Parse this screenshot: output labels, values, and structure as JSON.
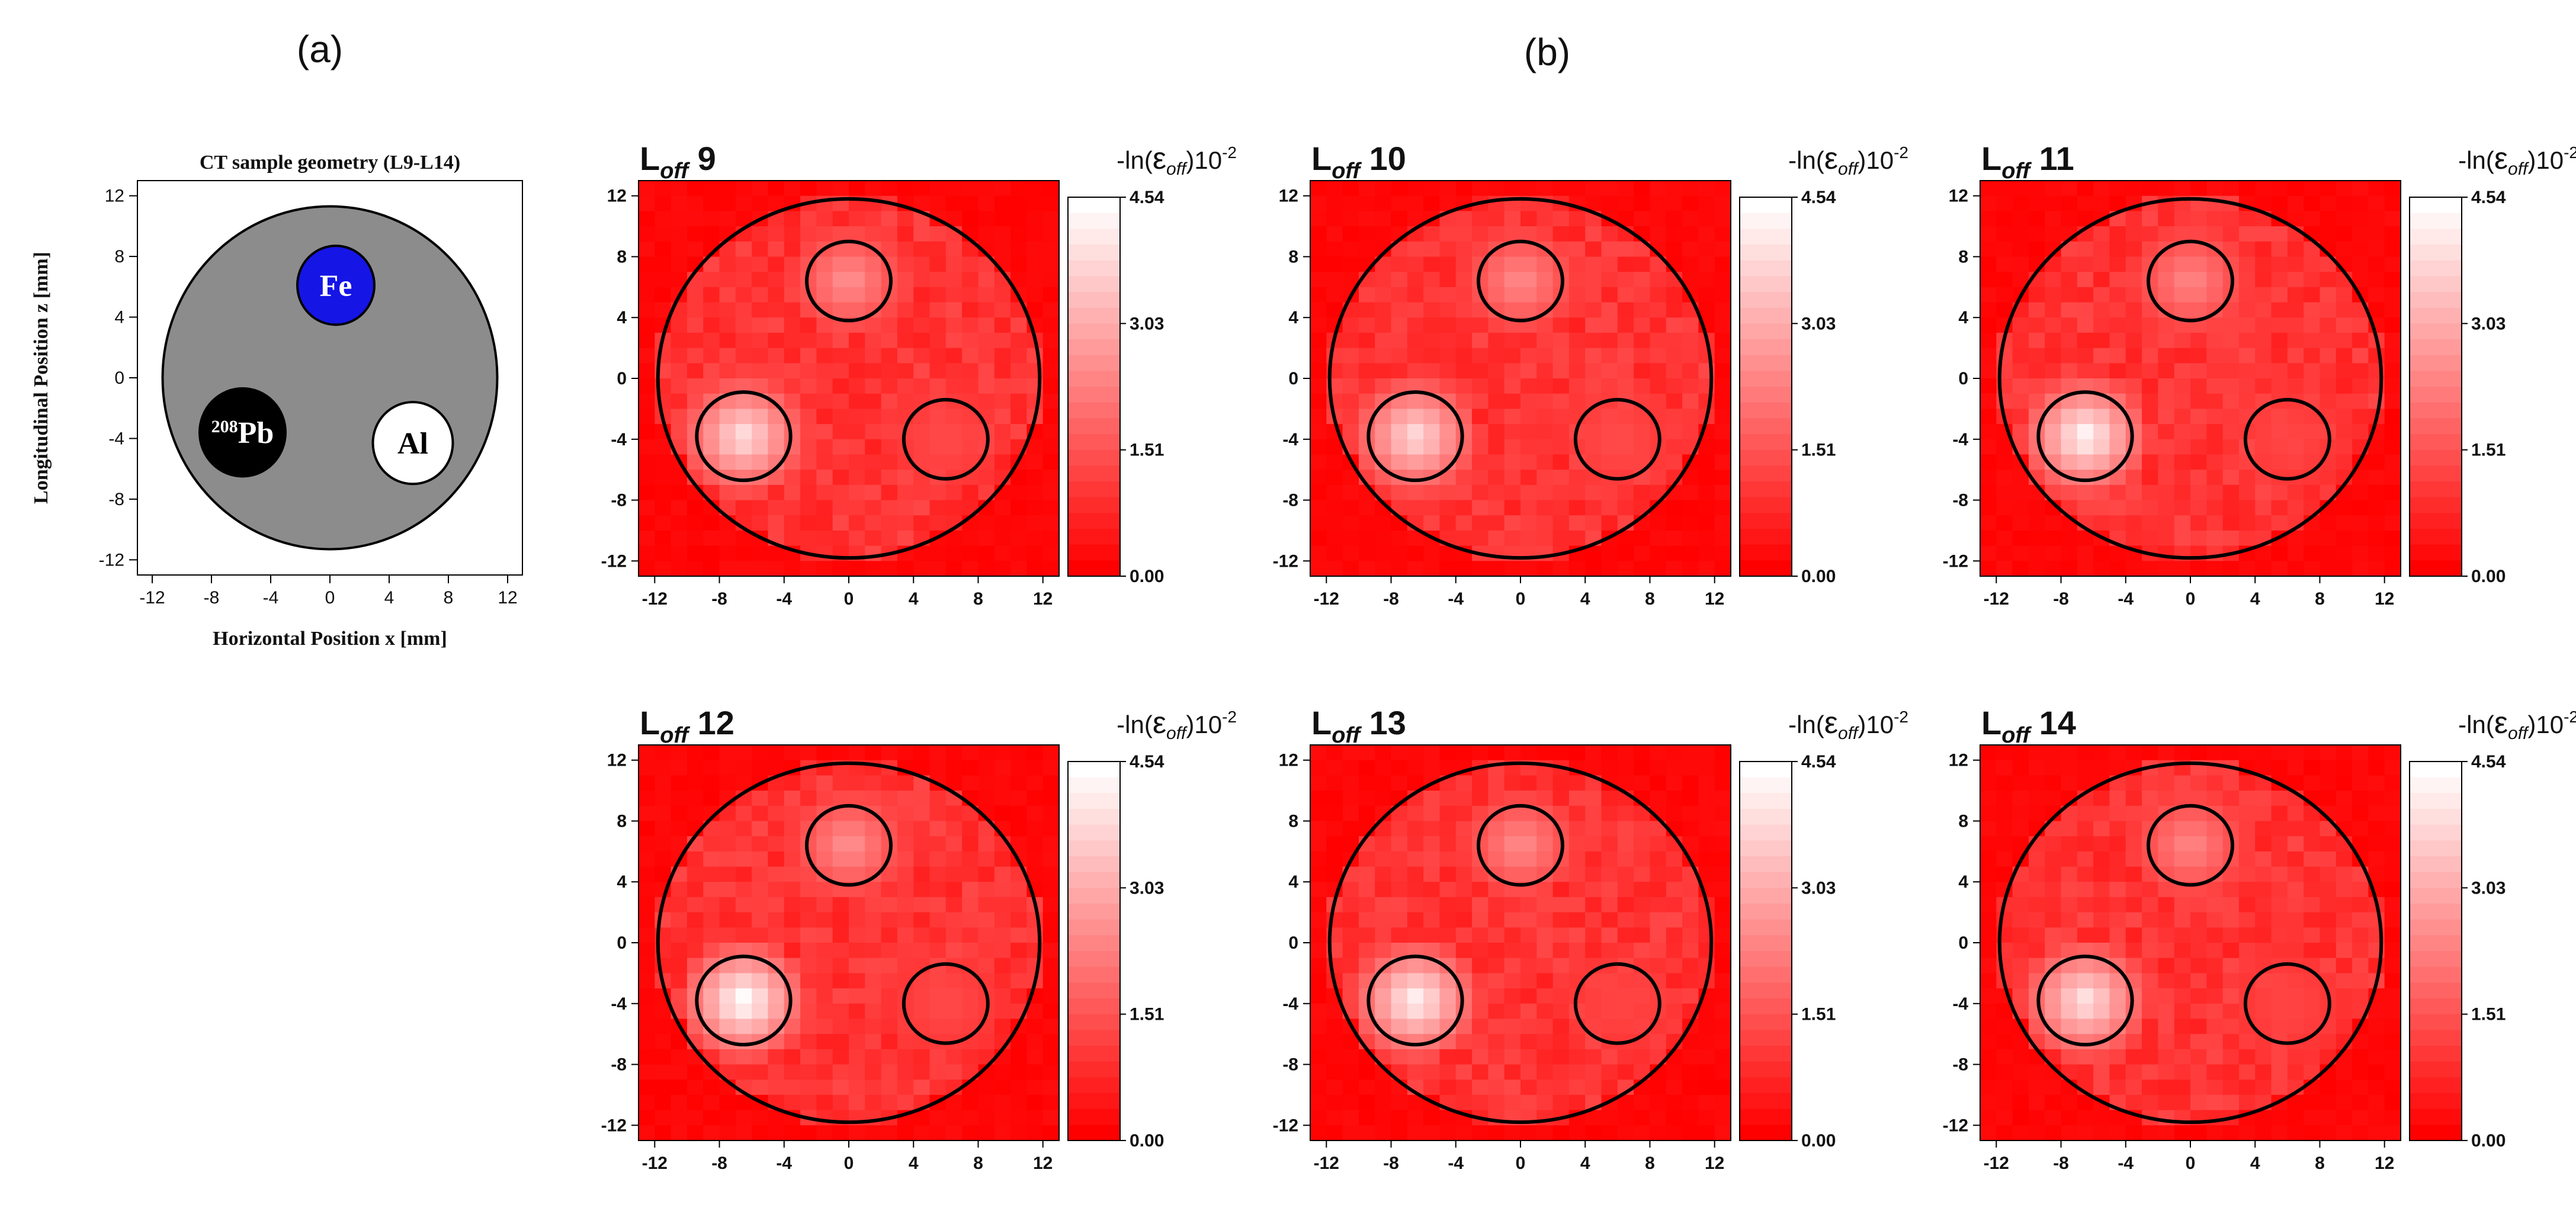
{
  "labels": {
    "panel_a": "(a)",
    "panel_b": "(b)"
  },
  "colors": {
    "sample_gray": "#8c8c8c",
    "fe": "#1515e6",
    "pb": "#000000",
    "al": "#ffffff",
    "map_red": "#ff0000"
  },
  "geometry_panel": {
    "title": "CT sample geometry (L9-L14)",
    "xlabel": "Horizontal Position x [mm]",
    "ylabel": "Longitudinal Position z [mm]",
    "xticks": [
      "-12",
      "-8",
      "-4",
      "0",
      "4",
      "8",
      "12"
    ],
    "yticks": [
      "12",
      "8",
      "4",
      "0",
      "-4",
      "-8",
      "-12"
    ],
    "materials": [
      {
        "label": "Fe",
        "x": 0.4,
        "z": 6.1,
        "r": 2.6
      },
      {
        "label_sup": "208",
        "label": "Pb",
        "x": -5.9,
        "z": -3.6,
        "r": 2.9
      },
      {
        "label": "Al",
        "x": 5.6,
        "z": -4.3,
        "r": 2.7
      }
    ],
    "sample_radius_mm": 11.3
  },
  "maps": {
    "title_prefix": "L",
    "title_subscript": "off",
    "colorbar_label_prefix": "-ln(",
    "colorbar_label_symbol": "ε",
    "colorbar_label_subscript": "off",
    "colorbar_label_suffix": ")10",
    "colorbar_label_exponent": "-2",
    "colorbar_ticks": [
      "4.54",
      "3.03",
      "1.51",
      "0.00"
    ],
    "xticks": [
      "-12",
      "-8",
      "-4",
      "0",
      "4",
      "8",
      "12"
    ],
    "yticks": [
      "12",
      "8",
      "4",
      "0",
      "-4",
      "-8",
      "-12"
    ],
    "panels": [
      {
        "layer": "9",
        "peak_pb": 0.72,
        "peak_fe": 0.4,
        "peak_al": 0.12
      },
      {
        "layer": "10",
        "peak_pb": 0.7,
        "peak_fe": 0.38,
        "peak_al": 0.13
      },
      {
        "layer": "11",
        "peak_pb": 0.82,
        "peak_fe": 0.36,
        "peak_al": 0.1
      },
      {
        "layer": "12",
        "peak_pb": 0.86,
        "peak_fe": 0.4,
        "peak_al": 0.12
      },
      {
        "layer": "13",
        "peak_pb": 0.8,
        "peak_fe": 0.38,
        "peak_al": 0.1
      },
      {
        "layer": "14",
        "peak_pb": 0.74,
        "peak_fe": 0.36,
        "peak_al": 0.1
      }
    ]
  }
}
